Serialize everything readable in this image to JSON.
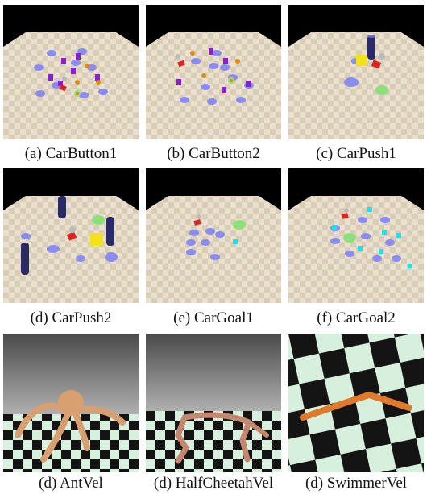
{
  "figure": {
    "panels": [
      {
        "caption": "(a) CarButton1"
      },
      {
        "caption": "(b) CarButton2"
      },
      {
        "caption": "(c) CarPush1"
      },
      {
        "caption": "(d) CarPush2"
      },
      {
        "caption": "(e) CarGoal1"
      },
      {
        "caption": "(f) CarGoal2"
      },
      {
        "caption": "(d) AntVel"
      },
      {
        "caption": "(d) HalfCheetahVel"
      },
      {
        "caption": "(d) SwimmerVel"
      }
    ]
  },
  "colors": {
    "floor_light": "#e9e0cf",
    "floor_dark": "#d9cdb6",
    "hazard": "#8a8cf0",
    "vase": "#8a1fd0",
    "button": "#e08a1a",
    "goal": "#8ce07a",
    "box": "#f2e21c",
    "pillar": "#2a2a66",
    "cyan_vase": "#21e0e8",
    "robot_body": "#d8a070",
    "checker_dark": "#141414",
    "checker_light": "#d6f0dd"
  }
}
